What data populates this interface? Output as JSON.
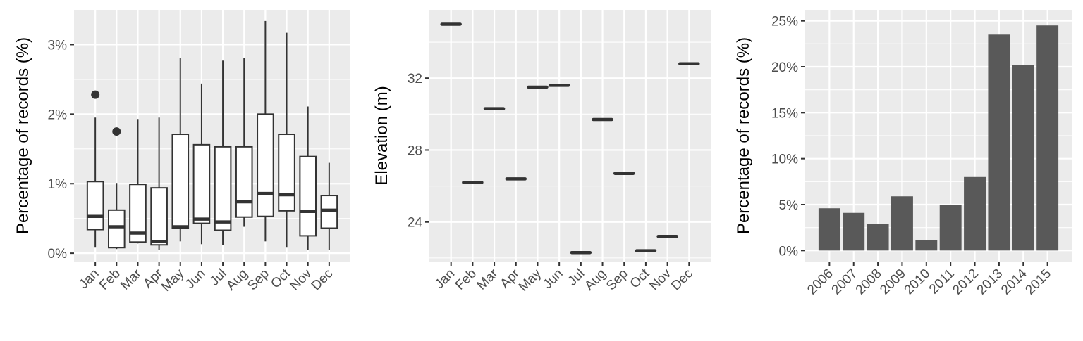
{
  "colors": {
    "panel_bg": "#ebebeb",
    "grid": "#ffffff",
    "box_fill": "#ffffff",
    "box_line": "#333333",
    "bar_fill": "#595959",
    "tick_text": "#4d4d4d"
  },
  "chart_data": [
    {
      "type": "box",
      "ylabel": "Percentage of records (%)",
      "ylim": [
        -0.12,
        3.5
      ],
      "yticks": [
        0,
        1,
        2,
        3
      ],
      "ytick_labels": [
        "0%",
        "1%",
        "2%",
        "3%"
      ],
      "categories": [
        "Jan",
        "Feb",
        "Mar",
        "Apr",
        "May",
        "Jun",
        "Jul",
        "Aug",
        "Sep",
        "Oct",
        "Nov",
        "Dec"
      ],
      "boxes": [
        {
          "min": 0.08,
          "q1": 0.34,
          "median": 0.53,
          "q3": 1.03,
          "max": 1.95,
          "outliers": [
            2.28
          ]
        },
        {
          "min": 0.06,
          "q1": 0.08,
          "median": 0.38,
          "q3": 0.62,
          "max": 1.01,
          "outliers": [
            1.75
          ]
        },
        {
          "min": 0.14,
          "q1": 0.16,
          "median": 0.29,
          "q3": 0.99,
          "max": 1.93,
          "outliers": []
        },
        {
          "min": 0.05,
          "q1": 0.12,
          "median": 0.17,
          "q3": 0.94,
          "max": 1.95,
          "outliers": []
        },
        {
          "min": 0.17,
          "q1": 0.36,
          "median": 0.38,
          "q3": 1.71,
          "max": 2.81,
          "outliers": []
        },
        {
          "min": 0.13,
          "q1": 0.43,
          "median": 0.49,
          "q3": 1.56,
          "max": 2.44,
          "outliers": []
        },
        {
          "min": 0.12,
          "q1": 0.33,
          "median": 0.45,
          "q3": 1.53,
          "max": 2.77,
          "outliers": []
        },
        {
          "min": 0.38,
          "q1": 0.52,
          "median": 0.74,
          "q3": 1.53,
          "max": 2.81,
          "outliers": []
        },
        {
          "min": 0.17,
          "q1": 0.53,
          "median": 0.86,
          "q3": 2.0,
          "max": 3.34,
          "outliers": []
        },
        {
          "min": 0.08,
          "q1": 0.61,
          "median": 0.84,
          "q3": 1.71,
          "max": 3.17,
          "outliers": []
        },
        {
          "min": 0.05,
          "q1": 0.25,
          "median": 0.6,
          "q3": 1.39,
          "max": 2.11,
          "outliers": []
        },
        {
          "min": 0.05,
          "q1": 0.36,
          "median": 0.62,
          "q3": 0.83,
          "max": 1.3,
          "outliers": []
        }
      ]
    },
    {
      "type": "scatter",
      "mark": "horizontal-segment",
      "ylabel": "Elevation (m)",
      "ylim": [
        21.8,
        35.8
      ],
      "yticks": [
        24,
        28,
        32
      ],
      "ytick_labels": [
        "24",
        "28",
        "32"
      ],
      "categories": [
        "Jan",
        "Feb",
        "Mar",
        "Apr",
        "May",
        "Jun",
        "Jul",
        "Aug",
        "Sep",
        "Oct",
        "Nov",
        "Dec"
      ],
      "values": [
        35.0,
        26.2,
        30.3,
        26.4,
        31.5,
        31.6,
        22.3,
        29.7,
        26.7,
        22.4,
        23.2,
        32.8
      ]
    },
    {
      "type": "bar",
      "ylabel": "Percentage of records (%)",
      "ylim": [
        -1.2,
        26.2
      ],
      "yticks": [
        0,
        5,
        10,
        15,
        20,
        25
      ],
      "ytick_labels": [
        "0%",
        "5%",
        "10%",
        "15%",
        "20%",
        "25%"
      ],
      "categories": [
        "2006",
        "2007",
        "2008",
        "2009",
        "2010",
        "2011",
        "2012",
        "2013",
        "2014",
        "2015"
      ],
      "values": [
        4.6,
        4.1,
        2.9,
        5.9,
        1.1,
        5.0,
        8.0,
        23.5,
        20.2,
        24.5
      ]
    }
  ]
}
